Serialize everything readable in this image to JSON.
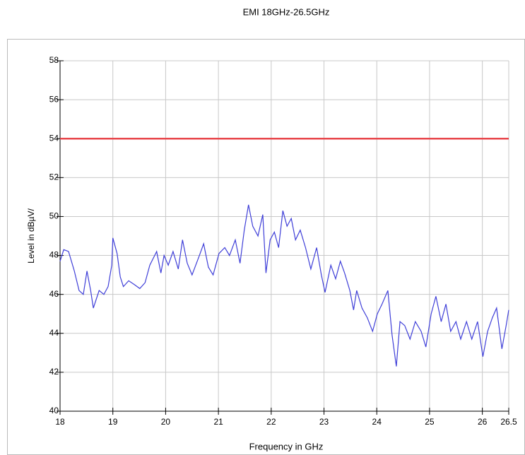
{
  "chart_data": {
    "type": "line",
    "title": "EMI 18GHz-26.5GHz",
    "xlabel": "Frequency in GHz",
    "ylabel": "Level in dBµV/",
    "xlim": [
      18,
      26.5
    ],
    "xticks": [
      18,
      19,
      20,
      21,
      22,
      23,
      24,
      25,
      26,
      26.5
    ],
    "ylim": [
      40,
      58
    ],
    "yticks": [
      40,
      42,
      44,
      46,
      48,
      50,
      52,
      54,
      56,
      58
    ],
    "grid": true,
    "limit_lines": [
      {
        "value": 54,
        "color": "#e8464b"
      }
    ],
    "x": [
      18.0,
      18.07,
      18.16,
      18.27,
      18.36,
      18.44,
      18.51,
      18.58,
      18.63,
      18.74,
      18.83,
      18.91,
      18.98,
      19.0,
      19.08,
      19.14,
      19.2,
      19.3,
      19.41,
      19.51,
      19.61,
      19.7,
      19.83,
      19.91,
      19.97,
      20.05,
      20.14,
      20.24,
      20.32,
      20.41,
      20.5,
      20.64,
      20.72,
      20.81,
      20.9,
      21.01,
      21.12,
      21.21,
      21.32,
      21.41,
      21.49,
      21.57,
      21.65,
      21.75,
      21.84,
      21.9,
      21.98,
      22.06,
      22.14,
      22.22,
      22.3,
      22.38,
      22.46,
      22.55,
      22.65,
      22.75,
      22.86,
      22.95,
      23.02,
      23.13,
      23.22,
      23.31,
      23.39,
      23.49,
      23.56,
      23.62,
      23.72,
      23.82,
      23.92,
      24.01,
      24.1,
      24.21,
      24.29,
      24.37,
      24.44,
      24.53,
      24.63,
      24.73,
      24.84,
      24.93,
      25.03,
      25.12,
      25.22,
      25.31,
      25.4,
      25.5,
      25.59,
      25.7,
      25.8,
      25.91,
      26.01,
      26.1,
      26.19,
      26.27,
      26.37,
      26.45,
      26.5
    ],
    "series": [
      {
        "color": "#3f3fd8",
        "values": [
          47.7,
          48.3,
          48.2,
          47.2,
          46.2,
          46.0,
          47.2,
          46.2,
          45.3,
          46.2,
          46.0,
          46.4,
          47.5,
          48.9,
          48.1,
          46.9,
          46.4,
          46.7,
          46.5,
          46.3,
          46.6,
          47.5,
          48.2,
          47.1,
          48.0,
          47.5,
          48.2,
          47.3,
          48.8,
          47.6,
          47.0,
          48.0,
          48.6,
          47.4,
          47.0,
          48.1,
          48.4,
          48.0,
          48.8,
          47.6,
          49.3,
          50.6,
          49.5,
          49.0,
          50.1,
          47.1,
          48.8,
          49.2,
          48.4,
          50.3,
          49.5,
          49.9,
          48.8,
          49.3,
          48.4,
          47.3,
          48.4,
          47.0,
          46.1,
          47.5,
          46.8,
          47.7,
          47.1,
          46.2,
          45.2,
          46.2,
          45.3,
          44.8,
          44.1,
          45.0,
          45.5,
          46.2,
          43.9,
          42.3,
          44.6,
          44.4,
          43.7,
          44.6,
          44.1,
          43.3,
          45.0,
          45.9,
          44.6,
          45.5,
          44.1,
          44.6,
          43.7,
          44.6,
          43.7,
          44.6,
          42.8,
          44.1,
          44.8,
          45.3,
          43.2,
          44.4,
          45.2
        ]
      }
    ]
  }
}
